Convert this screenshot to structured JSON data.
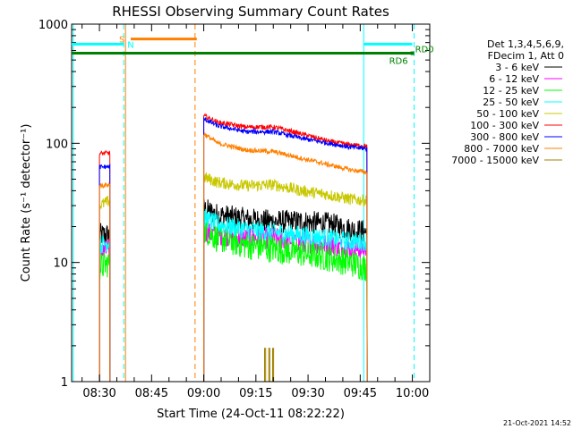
{
  "chart_data": {
    "type": "line",
    "title": "RHESSI Observing Summary Count Rates",
    "xlabel": "Start Time (24-Oct-11 08:22:22)",
    "ylabel": "Count Rate (s⁻¹ detector⁻¹)",
    "xlim_minutes_after_0822": [
      0,
      103
    ],
    "ylim": [
      1,
      1000
    ],
    "yscale": "log",
    "x_ticks": [
      {
        "label": "08:30",
        "t": 8
      },
      {
        "label": "08:45",
        "t": 23
      },
      {
        "label": "09:00",
        "t": 38
      },
      {
        "label": "09:15",
        "t": 53
      },
      {
        "label": "09:30",
        "t": 68
      },
      {
        "label": "09:45",
        "t": 83
      },
      {
        "label": "10:00",
        "t": 98
      }
    ],
    "y_ticks": [
      {
        "label": "1",
        "v": 1
      },
      {
        "label": "10",
        "v": 10
      },
      {
        "label": "100",
        "v": 100
      },
      {
        "label": "1000",
        "v": 1000
      }
    ],
    "legend": {
      "placement": "right",
      "header": [
        "Det 1,3,4,5,6,9,",
        "FDecim 1, Att 0"
      ]
    },
    "series": [
      {
        "name": "3 - 6 keV",
        "color": "#000000",
        "noise": 0.1,
        "segments": [
          {
            "x": [
              8,
              11
            ],
            "y": [
              17,
              17
            ]
          },
          {
            "x": [
              38,
              42,
              50,
              58,
              66,
              74,
              80,
              85
            ],
            "y": [
              28,
              25,
              23,
              22,
              22,
              21,
              19,
              18
            ]
          }
        ]
      },
      {
        "name": "6 - 12 keV",
        "color": "#ff00ff",
        "noise": 0.09,
        "segments": [
          {
            "x": [
              8,
              11
            ],
            "y": [
              12,
              13
            ]
          },
          {
            "x": [
              38,
              42,
              50,
              58,
              66,
              74,
              80,
              85
            ],
            "y": [
              18,
              17,
              16,
              16,
              15,
              14,
              13,
              13
            ]
          }
        ]
      },
      {
        "name": "12 - 25 keV",
        "color": "#00ff00",
        "noise": 0.12,
        "segments": [
          {
            "x": [
              8,
              11
            ],
            "y": [
              9,
              10
            ]
          },
          {
            "x": [
              38,
              42,
              50,
              58,
              66,
              74,
              80,
              85
            ],
            "y": [
              19,
              16,
              14,
              13,
              12,
              11,
              10,
              9
            ]
          }
        ]
      },
      {
        "name": "25 - 50 keV",
        "color": "#00ffff",
        "noise": 0.08,
        "segments": [
          {
            "x": [
              8,
              11
            ],
            "y": [
              14,
              15
            ]
          },
          {
            "x": [
              38,
              42,
              50,
              58,
              66,
              74,
              80,
              85
            ],
            "y": [
              24,
              21,
              19,
              18,
              17,
              16,
              15,
              15
            ]
          }
        ]
      },
      {
        "name": "50 - 100 keV",
        "color": "#c8c800",
        "noise": 0.05,
        "segments": [
          {
            "x": [
              8,
              11
            ],
            "y": [
              30,
              33
            ]
          },
          {
            "x": [
              38,
              42,
              50,
              58,
              66,
              74,
              80,
              85
            ],
            "y": [
              52,
              47,
              44,
              45,
              40,
              37,
              34,
              33
            ]
          }
        ]
      },
      {
        "name": "100 - 300 keV",
        "color": "#ff0000",
        "noise": 0.02,
        "segments": [
          {
            "x": [
              8,
              11
            ],
            "y": [
              82,
              83
            ]
          },
          {
            "x": [
              38,
              42,
              50,
              58,
              66,
              74,
              80,
              85
            ],
            "y": [
              170,
              150,
              137,
              137,
              120,
              104,
              97,
              95
            ]
          }
        ]
      },
      {
        "name": "300 - 800 keV",
        "color": "#0000ff",
        "noise": 0.02,
        "segments": [
          {
            "x": [
              8,
              11
            ],
            "y": [
              63,
              64
            ]
          },
          {
            "x": [
              38,
              42,
              50,
              58,
              66,
              74,
              80,
              85
            ],
            "y": [
              160,
              140,
              125,
              125,
              110,
              100,
              93,
              90
            ]
          }
        ]
      },
      {
        "name": "800 - 7000 keV",
        "color": "#ff8000",
        "noise": 0.02,
        "segments": [
          {
            "x": [
              8,
              11
            ],
            "y": [
              44,
              45
            ]
          },
          {
            "x": [
              38,
              42,
              50,
              58,
              66,
              74,
              80,
              85
            ],
            "y": [
              120,
              100,
              88,
              85,
              75,
              66,
              60,
              57
            ]
          }
        ]
      },
      {
        "name": "7000 - 15000 keV",
        "color": "#a08000",
        "noise": 0.0,
        "segments": [
          {
            "x": [
              55.5,
              55.5,
              55.8,
              55.8
            ],
            "y": [
              1,
              1.9,
              1.9,
              1
            ]
          },
          {
            "x": [
              56.7,
              56.7,
              57.0,
              57.0
            ],
            "y": [
              1,
              1.9,
              1.9,
              1
            ]
          },
          {
            "x": [
              57.8,
              57.8,
              58.1,
              58.1
            ],
            "y": [
              1,
              1.9,
              1.9,
              1
            ]
          }
        ]
      }
    ],
    "flags": [
      {
        "label": "S",
        "color": "#ff8000",
        "x": [
          17,
          36
        ],
        "y": 750
      },
      {
        "label": "N",
        "color": "#00ffff",
        "x": [
          0,
          15
        ],
        "y": 680
      },
      {
        "label": "",
        "color": "#00ffff",
        "x": [
          84,
          98
        ],
        "y": 680
      },
      {
        "label": "RD6",
        "color": "#008000",
        "x": [
          0,
          98
        ],
        "y": 570
      },
      {
        "label": "RD0",
        "color": "#008000",
        "x": [
          98,
          98
        ],
        "y": 570
      }
    ],
    "vlines": [
      {
        "x": 15.5,
        "color": "#ff8000",
        "style": "solid"
      },
      {
        "x": 35.5,
        "color": "#ff8000",
        "style": "dashed"
      },
      {
        "x": 15,
        "color": "#00ffff",
        "style": "dashed"
      },
      {
        "x": 84,
        "color": "#00ffff",
        "style": "solid"
      },
      {
        "x": 98.5,
        "color": "#00ffff",
        "style": "dashed"
      },
      {
        "x": 0.5,
        "color": "#00ffff",
        "style": "solid"
      }
    ],
    "timestamp": "21-Oct-2021 14:52"
  }
}
